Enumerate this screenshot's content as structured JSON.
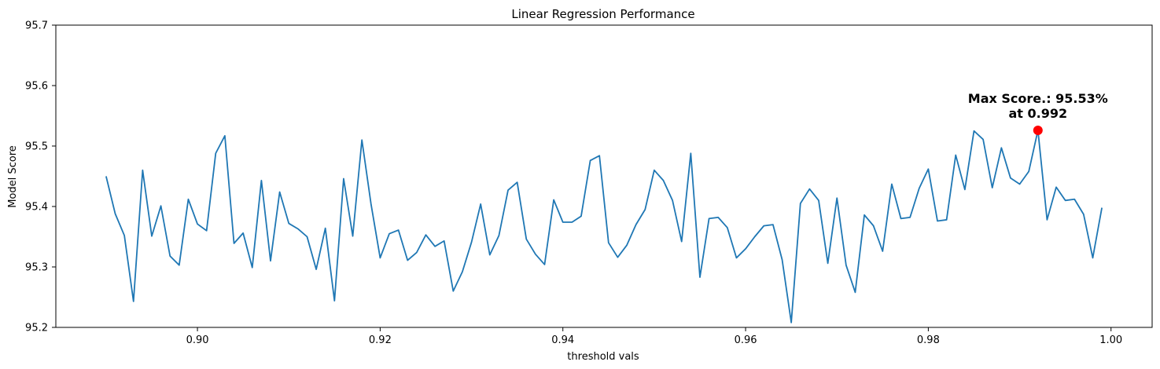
{
  "chart_data": {
    "type": "line",
    "title": "Linear Regression Performance",
    "xlabel": "threshold vals",
    "ylabel": "Model Score",
    "xlim": [
      0.8845,
      1.0045
    ],
    "ylim": [
      95.2,
      95.7
    ],
    "xticks": [
      0.9,
      0.92,
      0.94,
      0.96,
      0.98,
      1.0
    ],
    "xtick_labels": [
      "0.90",
      "0.92",
      "0.94",
      "0.96",
      "0.98",
      "1.00"
    ],
    "yticks": [
      95.2,
      95.3,
      95.4,
      95.5,
      95.6,
      95.7
    ],
    "ytick_labels": [
      "95.2",
      "95.3",
      "95.4",
      "95.5",
      "95.6",
      "95.7"
    ],
    "grid": false,
    "series": [
      {
        "color": "#1f77b4",
        "x": [
          0.89,
          0.891,
          0.892,
          0.893,
          0.894,
          0.895,
          0.896,
          0.897,
          0.898,
          0.899,
          0.9,
          0.901,
          0.902,
          0.903,
          0.904,
          0.905,
          0.906,
          0.907,
          0.908,
          0.909,
          0.91,
          0.911,
          0.912,
          0.913,
          0.914,
          0.915,
          0.916,
          0.917,
          0.918,
          0.919,
          0.92,
          0.921,
          0.922,
          0.923,
          0.924,
          0.925,
          0.926,
          0.927,
          0.928,
          0.929,
          0.93,
          0.931,
          0.932,
          0.933,
          0.934,
          0.935,
          0.936,
          0.937,
          0.938,
          0.939,
          0.94,
          0.941,
          0.942,
          0.943,
          0.944,
          0.945,
          0.946,
          0.947,
          0.948,
          0.949,
          0.95,
          0.951,
          0.952,
          0.953,
          0.954,
          0.955,
          0.956,
          0.957,
          0.958,
          0.959,
          0.96,
          0.961,
          0.962,
          0.963,
          0.964,
          0.965,
          0.966,
          0.967,
          0.968,
          0.969,
          0.97,
          0.971,
          0.972,
          0.973,
          0.974,
          0.975,
          0.976,
          0.977,
          0.978,
          0.979,
          0.98,
          0.981,
          0.982,
          0.983,
          0.984,
          0.985,
          0.986,
          0.987,
          0.988,
          0.989,
          0.99,
          0.991,
          0.992,
          0.993,
          0.994,
          0.995,
          0.996,
          0.997,
          0.998,
          0.999
        ],
        "y": [
          95.45,
          95.388,
          95.352,
          95.243,
          95.46,
          95.351,
          95.401,
          95.318,
          95.303,
          95.412,
          95.371,
          95.36,
          95.488,
          95.517,
          95.339,
          95.356,
          95.299,
          95.443,
          95.31,
          95.424,
          95.372,
          95.363,
          95.35,
          95.296,
          95.364,
          95.244,
          95.446,
          95.351,
          95.51,
          95.404,
          95.315,
          95.355,
          95.361,
          95.311,
          95.324,
          95.353,
          95.334,
          95.343,
          95.26,
          95.292,
          95.341,
          95.404,
          95.32,
          95.352,
          95.427,
          95.44,
          95.346,
          95.321,
          95.304,
          95.411,
          95.374,
          95.374,
          95.384,
          95.476,
          95.484,
          95.34,
          95.316,
          95.336,
          95.37,
          95.395,
          95.46,
          95.443,
          95.41,
          95.342,
          95.488,
          95.283,
          95.38,
          95.382,
          95.365,
          95.315,
          95.33,
          95.35,
          95.368,
          95.37,
          95.312,
          95.208,
          95.405,
          95.429,
          95.41,
          95.306,
          95.414,
          95.303,
          95.258,
          95.386,
          95.368,
          95.326,
          95.437,
          95.38,
          95.382,
          95.43,
          95.462,
          95.376,
          95.378,
          95.485,
          95.428,
          95.525,
          95.511,
          95.431,
          95.497,
          95.447,
          95.437,
          95.458,
          95.526,
          95.378,
          95.432,
          95.41,
          95.412,
          95.387,
          95.315,
          95.398
        ]
      }
    ],
    "max_point": {
      "x": 0.992,
      "y": 95.526,
      "color": "#ff0000"
    },
    "annotation": {
      "line1": "Max Score.: 95.53%",
      "line2": "at 0.992"
    }
  }
}
